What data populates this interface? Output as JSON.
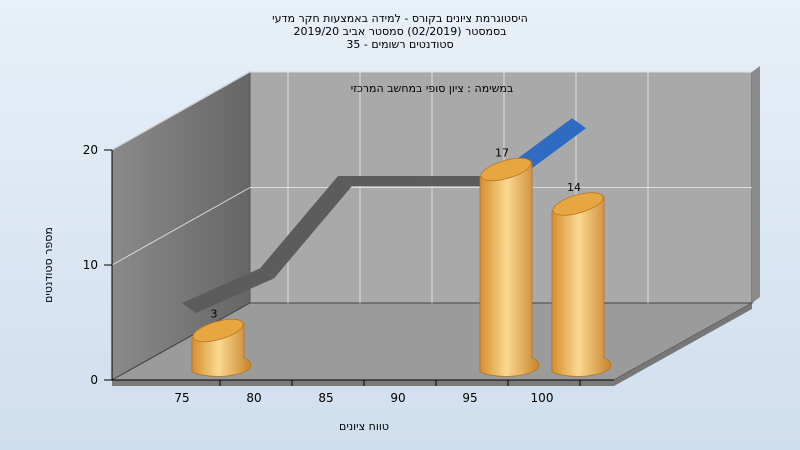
{
  "chart_data": {
    "type": "bar",
    "title_lines": [
      "היסטוגרמת ציונים בקורס - למידה באמצעות חקר מדעי",
      "בסמסטר  (02/2019)  סמסטר אביב 2019/20",
      "סטודנטים רשומים - 35"
    ],
    "subtitle": "במשימה : ציון סופי במחשב המרכזי",
    "xlabel": "טווח ציונים",
    "ylabel": "מספר סטודנטים",
    "categories": [
      "75",
      "80",
      "85",
      "90",
      "95",
      "100"
    ],
    "y_ticks": [
      "0",
      "10",
      "20"
    ],
    "ylim": [
      0,
      20
    ],
    "bars": [
      {
        "category": "75",
        "value": 3,
        "label": "3"
      },
      {
        "category": "95",
        "value": 17,
        "label": "17"
      },
      {
        "category": "100",
        "value": 14,
        "label": "14"
      }
    ],
    "ribbon": {
      "x": [
        75,
        80,
        85,
        90,
        95,
        100
      ],
      "values": [
        0,
        3,
        11,
        11,
        11,
        16
      ]
    },
    "colors": {
      "bar": "#e8a640",
      "bar_highlight": "#fbd892",
      "ribbon_gray": "#5c5c5c",
      "ribbon_blue": "#2f6bc0",
      "back_wall": "#a9a9a9",
      "side_wall": "#6e6e6e",
      "floor": "#9b9b9b"
    }
  }
}
